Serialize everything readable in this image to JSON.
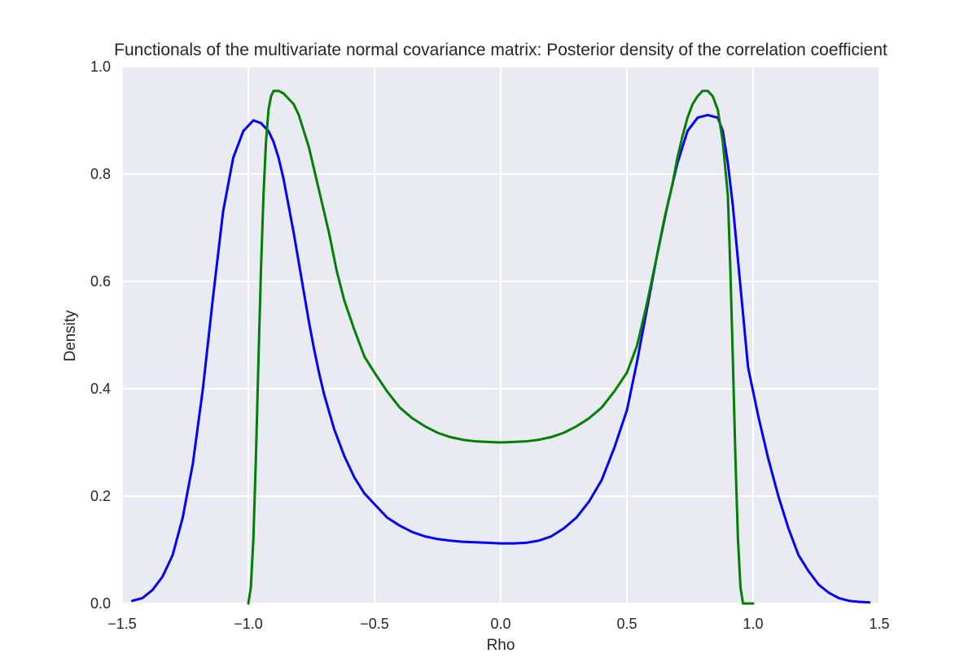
{
  "chart_data": {
    "type": "line",
    "title": "Functionals of the multivariate normal covariance matrix: Posterior density of the correlation coefficient",
    "xlabel": "Rho",
    "ylabel": "Density",
    "xlim": [
      -1.5,
      1.5
    ],
    "ylim": [
      0.0,
      1.0
    ],
    "xticks": [
      -1.5,
      -1.0,
      -0.5,
      0.0,
      0.5,
      1.0,
      1.5
    ],
    "xtick_labels": [
      "−1.5",
      "−1.0",
      "−0.5",
      "0.0",
      "0.5",
      "1.0",
      "1.5"
    ],
    "yticks": [
      0.0,
      0.2,
      0.4,
      0.6,
      0.8,
      1.0
    ],
    "ytick_labels": [
      "0.0",
      "0.2",
      "0.4",
      "0.6",
      "0.8",
      "1.0"
    ],
    "grid": true,
    "background": "#EAEAF2",
    "series": [
      {
        "color": "#0000FF",
        "x": [
          -1.46,
          -1.42,
          -1.38,
          -1.34,
          -1.3,
          -1.26,
          -1.22,
          -1.18,
          -1.14,
          -1.1,
          -1.06,
          -1.02,
          -0.98,
          -0.95,
          -0.92,
          -0.9,
          -0.88,
          -0.86,
          -0.84,
          -0.82,
          -0.8,
          -0.78,
          -0.76,
          -0.74,
          -0.72,
          -0.7,
          -0.66,
          -0.62,
          -0.58,
          -0.54,
          -0.5,
          -0.45,
          -0.4,
          -0.35,
          -0.3,
          -0.25,
          -0.2,
          -0.15,
          -0.1,
          -0.05,
          0.0,
          0.05,
          0.1,
          0.15,
          0.2,
          0.25,
          0.3,
          0.35,
          0.4,
          0.45,
          0.5,
          0.54,
          0.58,
          0.62,
          0.66,
          0.7,
          0.74,
          0.78,
          0.82,
          0.86,
          0.88,
          0.9,
          0.92,
          0.94,
          0.96,
          0.98,
          1.02,
          1.06,
          1.1,
          1.14,
          1.18,
          1.22,
          1.26,
          1.3,
          1.34,
          1.38,
          1.42,
          1.46
        ],
        "y": [
          0.005,
          0.01,
          0.025,
          0.05,
          0.09,
          0.16,
          0.26,
          0.4,
          0.57,
          0.73,
          0.83,
          0.88,
          0.9,
          0.895,
          0.88,
          0.86,
          0.83,
          0.79,
          0.74,
          0.69,
          0.635,
          0.58,
          0.525,
          0.475,
          0.43,
          0.39,
          0.325,
          0.275,
          0.235,
          0.205,
          0.185,
          0.16,
          0.145,
          0.133,
          0.125,
          0.12,
          0.117,
          0.115,
          0.114,
          0.113,
          0.112,
          0.112,
          0.113,
          0.117,
          0.125,
          0.14,
          0.16,
          0.19,
          0.23,
          0.29,
          0.36,
          0.45,
          0.55,
          0.65,
          0.74,
          0.82,
          0.88,
          0.905,
          0.91,
          0.905,
          0.88,
          0.82,
          0.74,
          0.64,
          0.54,
          0.44,
          0.35,
          0.27,
          0.2,
          0.14,
          0.09,
          0.06,
          0.035,
          0.02,
          0.01,
          0.005,
          0.003,
          0.002
        ],
        "note": "blue curve"
      },
      {
        "color": "#008000",
        "x": [
          -1.0,
          -0.99,
          -0.98,
          -0.97,
          -0.96,
          -0.95,
          -0.94,
          -0.93,
          -0.92,
          -0.91,
          -0.9,
          -0.88,
          -0.86,
          -0.84,
          -0.82,
          -0.8,
          -0.78,
          -0.76,
          -0.74,
          -0.72,
          -0.7,
          -0.68,
          -0.65,
          -0.62,
          -0.58,
          -0.54,
          -0.5,
          -0.45,
          -0.4,
          -0.35,
          -0.3,
          -0.25,
          -0.2,
          -0.15,
          -0.1,
          -0.05,
          0.0,
          0.05,
          0.1,
          0.15,
          0.2,
          0.25,
          0.3,
          0.35,
          0.4,
          0.45,
          0.5,
          0.54,
          0.58,
          0.62,
          0.65,
          0.68,
          0.7,
          0.72,
          0.74,
          0.76,
          0.78,
          0.8,
          0.82,
          0.84,
          0.86,
          0.88,
          0.9,
          0.91,
          0.92,
          0.93,
          0.94,
          0.95,
          0.96,
          0.97,
          0.98,
          0.99,
          1.0
        ],
        "y": [
          0.0,
          0.03,
          0.12,
          0.27,
          0.45,
          0.62,
          0.76,
          0.86,
          0.92,
          0.945,
          0.955,
          0.955,
          0.95,
          0.94,
          0.93,
          0.91,
          0.88,
          0.85,
          0.81,
          0.77,
          0.73,
          0.69,
          0.62,
          0.565,
          0.51,
          0.46,
          0.43,
          0.395,
          0.365,
          0.345,
          0.33,
          0.318,
          0.31,
          0.305,
          0.302,
          0.301,
          0.3,
          0.301,
          0.302,
          0.305,
          0.31,
          0.318,
          0.33,
          0.345,
          0.365,
          0.395,
          0.43,
          0.48,
          0.56,
          0.65,
          0.72,
          0.78,
          0.83,
          0.87,
          0.905,
          0.93,
          0.945,
          0.955,
          0.955,
          0.945,
          0.92,
          0.86,
          0.76,
          0.62,
          0.45,
          0.27,
          0.12,
          0.03,
          0.0,
          0.0,
          0.0,
          0.0,
          0.0
        ],
        "note": "green curve"
      }
    ]
  }
}
